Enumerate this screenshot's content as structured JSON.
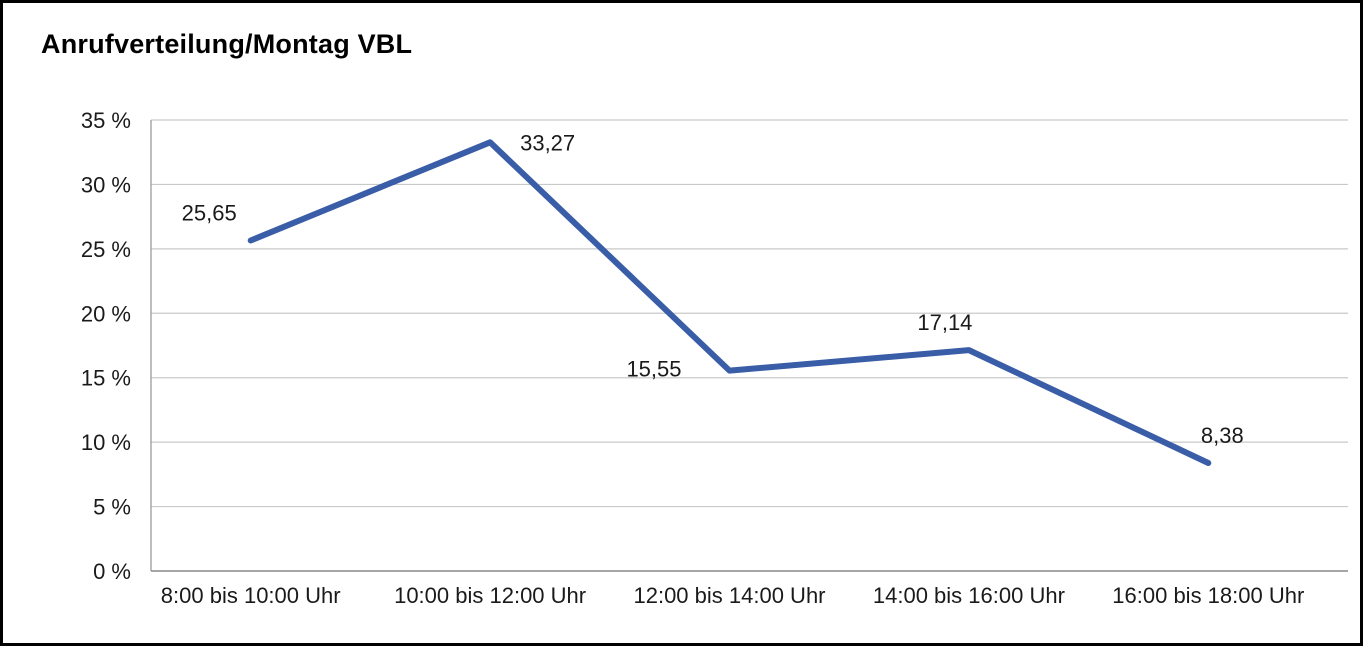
{
  "chart_data": {
    "type": "line",
    "title": "Anrufverteilung/Montag VBL",
    "categories": [
      "8:00 bis 10:00 Uhr",
      "10:00 bis 12:00 Uhr",
      "12:00 bis 14:00 Uhr",
      "14:00 bis 16:00 Uhr",
      "16:00 bis 18:00 Uhr"
    ],
    "values": [
      25.65,
      33.27,
      15.55,
      17.14,
      8.38
    ],
    "data_labels": [
      "25,65",
      "33,27",
      "15,55",
      "17,14",
      "8,38"
    ],
    "xlabel": "",
    "ylabel": "",
    "y_axis": {
      "min": 0,
      "max": 35,
      "step": 5,
      "tick_labels": [
        "0 %",
        "5 %",
        "10 %",
        "15 %",
        "20 %",
        "25 %",
        "30 %",
        "35 %"
      ]
    },
    "grid": true,
    "legend": "none",
    "colors": {
      "line": "#3a5da8",
      "grid": "#c9c9c9",
      "y_axis_line": "#9b9b9b",
      "x_axis_line": "#8c8c8c",
      "text": "#1a1a1a",
      "title": "#000000",
      "frame_border": "#000000",
      "background": "#ffffff"
    }
  }
}
